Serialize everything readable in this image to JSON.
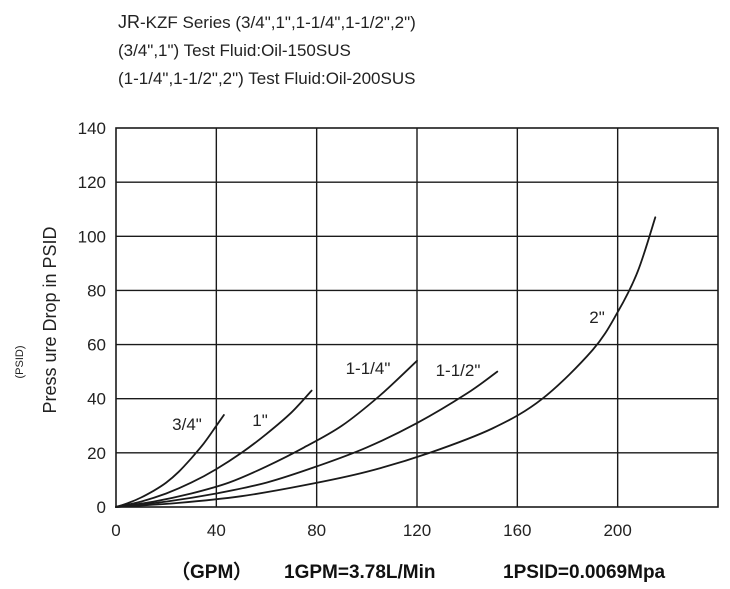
{
  "header": {
    "line1_code": "JR",
    "line1_rest": "-KZF Series (3/4\",1\",1-1/4\",1-1/2\",2\")",
    "line2": "(3/4\",1\") Test Fluid:Oil-150SUS",
    "line3": "(1-1/4\",1-1/2\",2\") Test Fluid:Oil-200SUS"
  },
  "chart_data": {
    "type": "line",
    "title": "",
    "xlabel": "(GPM) 1GPM=3.78L/Min    1PSID=0.0069Mpa",
    "ylabel": "Press ure Drop in PSID",
    "ylabel_unit": "(PSID)",
    "xlim": [
      0,
      240
    ],
    "ylim": [
      0,
      140
    ],
    "x_ticks": [
      "0",
      "40",
      "80",
      "120",
      "160",
      "200"
    ],
    "y_ticks": [
      "0",
      "20",
      "40",
      "60",
      "80",
      "100",
      "120",
      "140"
    ],
    "grid": true,
    "legend": "none (curves labelled directly)",
    "series": [
      {
        "name": "3/4\"",
        "x": [
          0,
          5,
          10,
          15,
          20,
          25,
          30,
          35,
          40,
          43
        ],
        "y": [
          0,
          1.5,
          3.5,
          6,
          9,
          13,
          18,
          23.5,
          30,
          34
        ]
      },
      {
        "name": "1\"",
        "x": [
          0,
          10,
          20,
          30,
          40,
          50,
          60,
          70,
          78
        ],
        "y": [
          0,
          2,
          5,
          9,
          14,
          20,
          27,
          35,
          43
        ]
      },
      {
        "name": "1-1/4\"",
        "x": [
          0,
          15,
          30,
          45,
          60,
          75,
          90,
          105,
          120
        ],
        "y": [
          0,
          2,
          5,
          9,
          15,
          22,
          30,
          41,
          54
        ]
      },
      {
        "name": "1-1/2\"",
        "x": [
          0,
          20,
          40,
          60,
          80,
          100,
          120,
          140,
          152
        ],
        "y": [
          0,
          2,
          5,
          9,
          15,
          22,
          31,
          42,
          50
        ]
      },
      {
        "name": "2\"",
        "x": [
          0,
          25,
          50,
          75,
          100,
          125,
          150,
          170,
          190,
          200,
          208,
          215
        ],
        "y": [
          0,
          1.5,
          4,
          8,
          13,
          20,
          29,
          40,
          58,
          72,
          87,
          107
        ]
      }
    ],
    "colors": {
      "curve": "#1a1a1a",
      "grid": "#1a1a1a"
    },
    "footer": {
      "gpm": "（GPM）",
      "gpm_conversion": "1GPM=3.78L/Min",
      "psid_conversion": "1PSID=0.0069Mpa"
    }
  }
}
